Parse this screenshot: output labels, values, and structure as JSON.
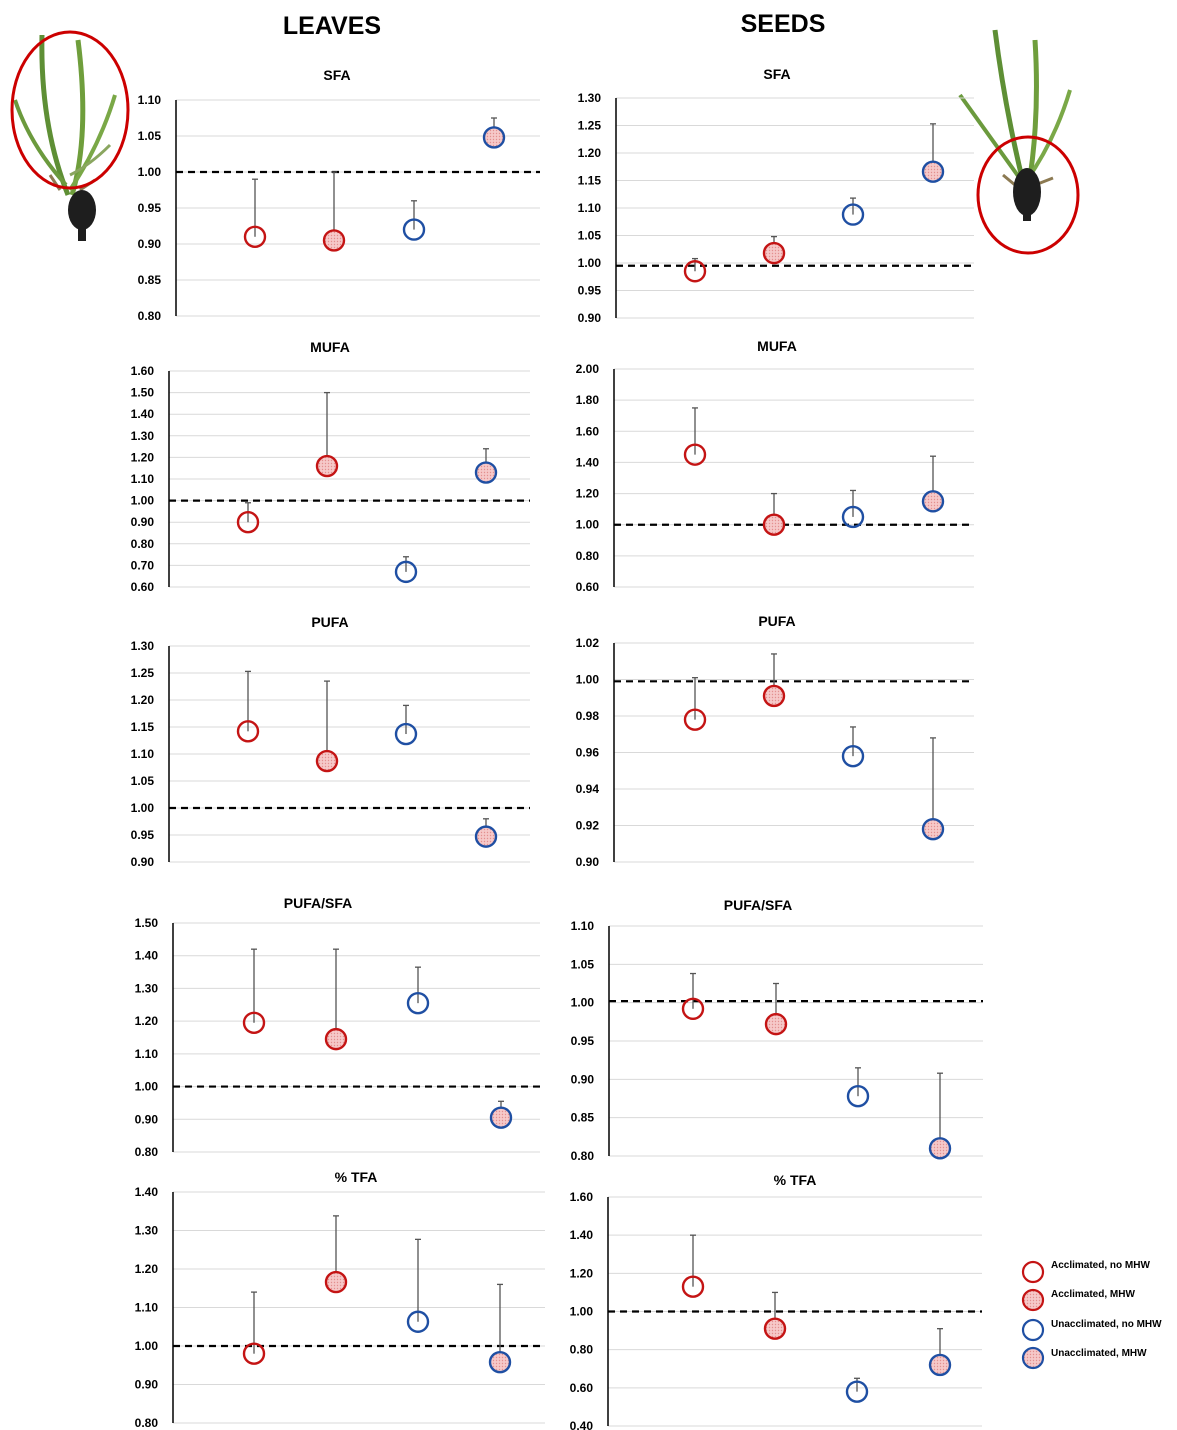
{
  "figure": {
    "left_column_title": "LEAVES",
    "right_column_title": "SEEDS"
  },
  "colors": {
    "acclimated": "#c41414",
    "unacclimated": "#1f4fa3",
    "fill_pink": "#f2b6b6",
    "grid": "#d9d9d9",
    "axis": "#000000",
    "errorbar": "#555555"
  },
  "icons": {
    "leaves_plant": "plant-icon",
    "seeds_plant": "plant-icon"
  },
  "legend": [
    {
      "label": "Acclimated, no MHW",
      "color": "#c41414",
      "filled": false
    },
    {
      "label": "Acclimated, MHW",
      "color": "#c41414",
      "filled": true
    },
    {
      "label": "Unacclimated, no MHW",
      "color": "#1f4fa3",
      "filled": false
    },
    {
      "label": "Unacclimated, MHW",
      "color": "#1f4fa3",
      "filled": true
    }
  ],
  "chart_data": [
    {
      "type": "scatter",
      "title": "SFA",
      "column": "LEAVES",
      "ylim": [
        0.8,
        1.1
      ],
      "yticks": [
        "1.10",
        "1.05",
        "1.00",
        "0.95",
        "0.90",
        "0.85",
        "0.80"
      ],
      "reference_line": 1.0,
      "values": [
        0.91,
        0.905,
        0.92,
        1.048
      ],
      "error_upper": [
        0.99,
        1.0,
        0.96,
        1.075
      ]
    },
    {
      "type": "scatter",
      "title": "SFA",
      "column": "SEEDS",
      "ylim": [
        0.9,
        1.3
      ],
      "yticks": [
        "1.30",
        "1.25",
        "1.20",
        "1.15",
        "1.10",
        "1.05",
        "1.00",
        "0.95",
        "0.90"
      ],
      "reference_line": 0.995,
      "values": [
        0.985,
        1.018,
        1.088,
        1.166
      ],
      "error_upper": [
        1.008,
        1.048,
        1.118,
        1.253
      ]
    },
    {
      "type": "scatter",
      "title": "MUFA",
      "column": "LEAVES",
      "ylim": [
        0.6,
        1.6
      ],
      "yticks": [
        "1.60",
        "1.50",
        "1.40",
        "1.30",
        "1.20",
        "1.10",
        "1.00",
        "0.90",
        "0.80",
        "0.70",
        "0.60"
      ],
      "reference_line": 1.0,
      "values": [
        0.9,
        1.16,
        0.67,
        1.13
      ],
      "error_upper": [
        0.99,
        1.5,
        0.74,
        1.24
      ]
    },
    {
      "type": "scatter",
      "title": "MUFA",
      "column": "SEEDS",
      "ylim": [
        0.6,
        2.0
      ],
      "yticks": [
        "2.00",
        "1.80",
        "1.60",
        "1.40",
        "1.20",
        "1.00",
        "0.80",
        "0.60"
      ],
      "reference_line": 1.0,
      "values": [
        1.45,
        1.0,
        1.05,
        1.15
      ],
      "error_upper": [
        1.75,
        1.2,
        1.22,
        1.44
      ]
    },
    {
      "type": "scatter",
      "title": "PUFA",
      "column": "LEAVES",
      "ylim": [
        0.9,
        1.3
      ],
      "yticks": [
        "1.30",
        "1.25",
        "1.20",
        "1.15",
        "1.10",
        "1.05",
        "1.00",
        "0.95",
        "0.90"
      ],
      "reference_line": 1.0,
      "values": [
        1.142,
        1.087,
        1.137,
        0.947
      ],
      "error_upper": [
        1.253,
        1.235,
        1.19,
        0.98
      ]
    },
    {
      "type": "scatter",
      "title": "PUFA",
      "column": "SEEDS",
      "ylim": [
        0.9,
        1.02
      ],
      "yticks": [
        "1.02",
        "1.00",
        "0.98",
        "0.96",
        "0.94",
        "0.92",
        "0.90"
      ],
      "reference_line": 0.999,
      "values": [
        0.978,
        0.991,
        0.958,
        0.918
      ],
      "error_upper": [
        1.001,
        1.014,
        0.974,
        0.968
      ]
    },
    {
      "type": "scatter",
      "title": "PUFA/SFA",
      "column": "LEAVES",
      "ylim": [
        0.8,
        1.5
      ],
      "yticks": [
        "1.50",
        "1.40",
        "1.30",
        "1.20",
        "1.10",
        "1.00",
        "0.90",
        "0.80"
      ],
      "reference_line": 1.0,
      "values": [
        1.195,
        1.145,
        1.255,
        0.905
      ],
      "error_upper": [
        1.42,
        1.42,
        1.365,
        0.955
      ]
    },
    {
      "type": "scatter",
      "title": "PUFA/SFA",
      "column": "SEEDS",
      "ylim": [
        0.8,
        1.1
      ],
      "yticks": [
        "1.10",
        "1.05",
        "1.00",
        "0.95",
        "0.90",
        "0.85",
        "0.80"
      ],
      "reference_line": 1.002,
      "values": [
        0.992,
        0.972,
        0.878,
        0.81
      ],
      "error_upper": [
        1.038,
        1.025,
        0.915,
        0.908
      ]
    },
    {
      "type": "scatter",
      "title": "% TFA",
      "column": "LEAVES",
      "ylim": [
        0.8,
        1.4
      ],
      "yticks": [
        "1.40",
        "1.30",
        "1.20",
        "1.10",
        "1.00",
        "0.90",
        "0.80"
      ],
      "reference_line": 1.0,
      "values": [
        0.98,
        1.166,
        1.063,
        0.958
      ],
      "error_upper": [
        1.14,
        1.338,
        1.277,
        1.16
      ]
    },
    {
      "type": "scatter",
      "title": "% TFA",
      "column": "SEEDS",
      "ylim": [
        0.4,
        1.6
      ],
      "yticks": [
        "1.60",
        "1.40",
        "1.20",
        "1.00",
        "0.80",
        "0.60",
        "0.40"
      ],
      "reference_line": 1.0,
      "values": [
        1.13,
        0.91,
        0.58,
        0.72
      ],
      "error_upper": [
        1.4,
        1.1,
        0.65,
        0.91
      ]
    }
  ]
}
